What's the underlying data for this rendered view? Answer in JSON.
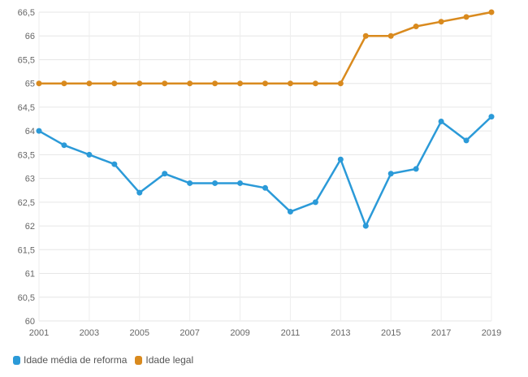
{
  "chart_data": {
    "type": "line",
    "x": [
      2001,
      2002,
      2003,
      2004,
      2005,
      2006,
      2007,
      2008,
      2009,
      2010,
      2011,
      2012,
      2013,
      2014,
      2015,
      2016,
      2017,
      2018,
      2019
    ],
    "x_tick_labels": [
      "2001",
      "2003",
      "2005",
      "2007",
      "2009",
      "2011",
      "2013",
      "2015",
      "2017",
      "2019"
    ],
    "y_tick_labels": [
      "60",
      "60,5",
      "61",
      "61,5",
      "62",
      "62,5",
      "63",
      "63,5",
      "64",
      "64,5",
      "65",
      "65,5",
      "66",
      "66,5"
    ],
    "ylim": [
      60,
      66.5
    ],
    "xlim": [
      2001,
      2019
    ],
    "grid": true,
    "legend_position": "bottom-left",
    "series": [
      {
        "name": "Idade média de reforma",
        "color": "#2b9ad8",
        "values": [
          64.0,
          63.7,
          63.5,
          63.3,
          62.7,
          63.1,
          62.9,
          62.9,
          62.9,
          62.8,
          62.3,
          62.5,
          63.4,
          62.0,
          63.1,
          63.2,
          64.2,
          63.8,
          64.3
        ]
      },
      {
        "name": "Idade legal",
        "color": "#d98a1e",
        "values": [
          65.0,
          65.0,
          65.0,
          65.0,
          65.0,
          65.0,
          65.0,
          65.0,
          65.0,
          65.0,
          65.0,
          65.0,
          65.0,
          66.0,
          66.0,
          66.2,
          66.3,
          66.4,
          66.5
        ]
      }
    ]
  }
}
